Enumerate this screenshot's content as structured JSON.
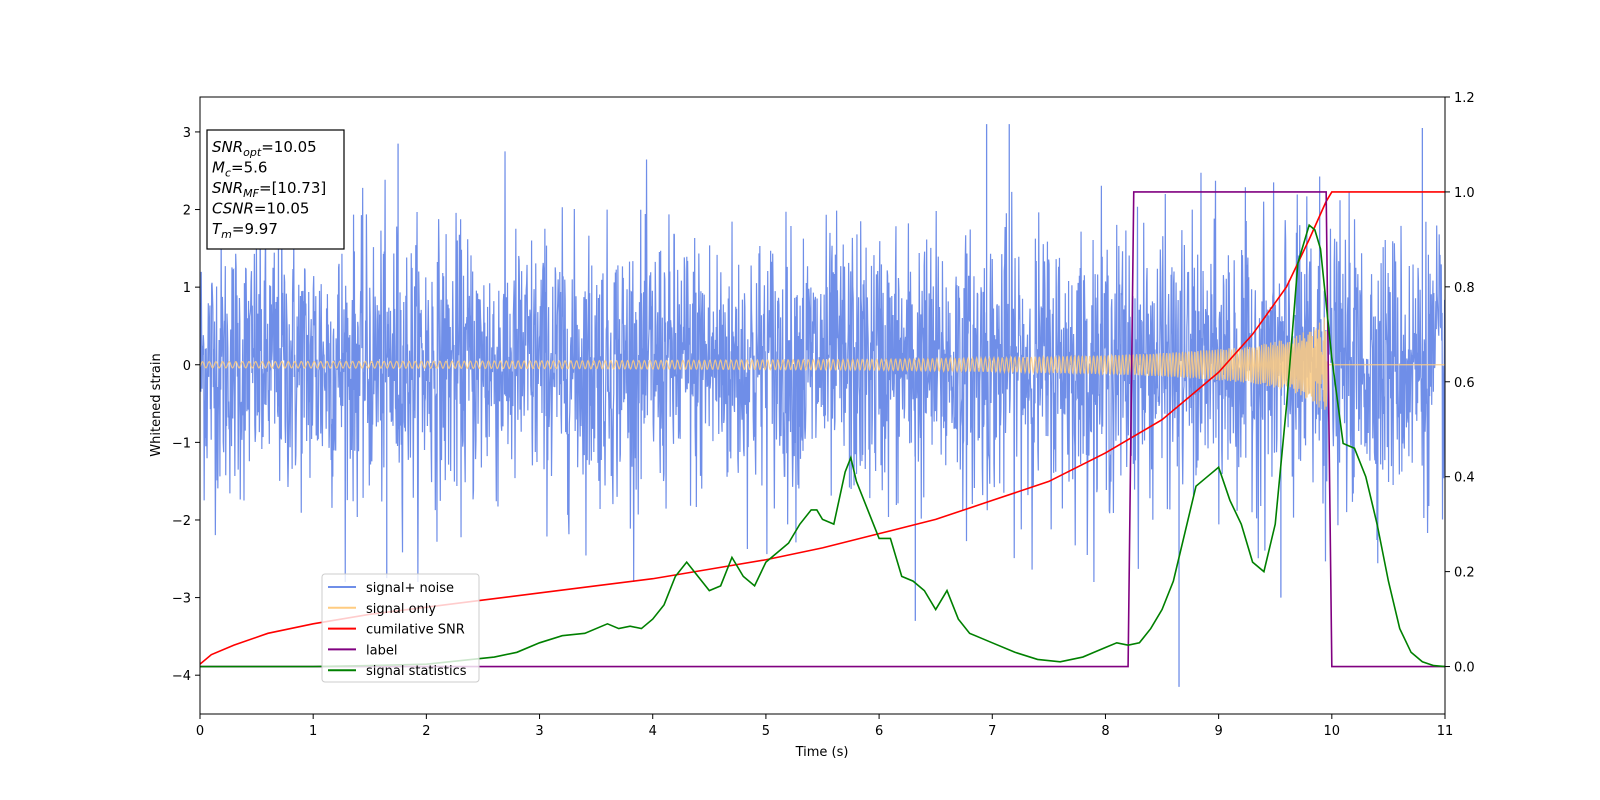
{
  "chart_data": {
    "type": "line",
    "title": "",
    "xlabel": "Time (s)",
    "ylabel": "Whitened strain",
    "xlim": [
      0,
      11
    ],
    "ylim": [
      -4.5,
      3.45
    ],
    "y2lim": [
      -0.1,
      1.2
    ],
    "x_ticks": [
      "0",
      "1",
      "2",
      "3",
      "4",
      "5",
      "6",
      "7",
      "8",
      "9",
      "10",
      "11"
    ],
    "y_ticks": [
      "3",
      "2",
      "1",
      "0",
      "−1",
      "−2",
      "−3",
      "−4"
    ],
    "y_tick_values": [
      3,
      2,
      1,
      0,
      -1,
      -2,
      -3,
      -4
    ],
    "y2_ticks": [
      "1.2",
      "1.0",
      "0.8",
      "0.6",
      "0.4",
      "0.2",
      "0.0"
    ],
    "y2_tick_values": [
      1.2,
      1.0,
      0.8,
      0.6,
      0.4,
      0.2,
      0.0
    ],
    "grid": false,
    "legend_position": "lower-left",
    "annotation": {
      "lines": [
        {
          "base": "SNR",
          "sub": "opt",
          "rest": "=10.05"
        },
        {
          "base": "M",
          "sub": "c",
          "rest": "=5.6"
        },
        {
          "base": "SNR",
          "sub": "MF",
          "rest": "=[10.73]"
        },
        {
          "base": "CSNR",
          "sub": "",
          "rest": "=10.05"
        },
        {
          "base": "T",
          "sub": "m",
          "rest": "=9.97"
        }
      ]
    },
    "series": [
      {
        "name": "signal+ noise",
        "color": "#6f8ee8",
        "axis": "left",
        "description_kind": "noise",
        "sigma": 0.85,
        "merger_time": 9.97,
        "outliers": [
          {
            "x": 1.75,
            "y": 2.85
          },
          {
            "x": 6.95,
            "y": 3.1
          },
          {
            "x": 7.15,
            "y": 3.1
          },
          {
            "x": 10.8,
            "y": 3.05
          },
          {
            "x": 6.32,
            "y": -3.3
          },
          {
            "x": 8.65,
            "y": -4.15
          },
          {
            "x": 1.65,
            "y": -2.75
          },
          {
            "x": 9.55,
            "y": -3.0
          }
        ]
      },
      {
        "name": "signal only",
        "color": "#ffcc80",
        "axis": "left",
        "envelope": [
          [
            0,
            0.04
          ],
          [
            2,
            0.045
          ],
          [
            4,
            0.055
          ],
          [
            6,
            0.07
          ],
          [
            7,
            0.09
          ],
          [
            8,
            0.12
          ],
          [
            8.5,
            0.15
          ],
          [
            9,
            0.2
          ],
          [
            9.3,
            0.24
          ],
          [
            9.5,
            0.3
          ],
          [
            9.7,
            0.38
          ],
          [
            9.85,
            0.5
          ],
          [
            9.95,
            0.65
          ],
          [
            9.97,
            0.0
          ],
          [
            11,
            0.0
          ]
        ]
      },
      {
        "name": "cumilative SNR",
        "color": "#ff0000",
        "axis": "right",
        "x": [
          0,
          0.1,
          0.3,
          0.6,
          1,
          1.5,
          2,
          2.5,
          3,
          3.5,
          4,
          4.5,
          5,
          5.5,
          6,
          6.5,
          7,
          7.5,
          8,
          8.5,
          9,
          9.3,
          9.6,
          9.8,
          9.95,
          10.0,
          11
        ],
        "values": [
          0.005,
          0.025,
          0.045,
          0.07,
          0.09,
          0.11,
          0.125,
          0.14,
          0.155,
          0.17,
          0.185,
          0.205,
          0.225,
          0.25,
          0.28,
          0.31,
          0.35,
          0.39,
          0.45,
          0.52,
          0.62,
          0.7,
          0.8,
          0.9,
          0.98,
          1.0,
          1.0
        ]
      },
      {
        "name": "label",
        "color": "#800080",
        "axis": "right",
        "x": [
          0,
          8.2,
          8.25,
          9.95,
          10.0,
          11
        ],
        "values": [
          0,
          0,
          1,
          1,
          0,
          0
        ]
      },
      {
        "name": "signal statistics",
        "color": "#008000",
        "axis": "right",
        "x": [
          0,
          0.5,
          1.0,
          1.5,
          2.0,
          2.2,
          2.4,
          2.6,
          2.8,
          3.0,
          3.2,
          3.4,
          3.6,
          3.7,
          3.8,
          3.9,
          4.0,
          4.1,
          4.2,
          4.3,
          4.4,
          4.5,
          4.6,
          4.7,
          4.75,
          4.8,
          4.9,
          5.0,
          5.1,
          5.2,
          5.3,
          5.4,
          5.45,
          5.5,
          5.6,
          5.7,
          5.75,
          5.8,
          5.9,
          6.0,
          6.1,
          6.2,
          6.3,
          6.4,
          6.5,
          6.6,
          6.7,
          6.8,
          6.9,
          7.0,
          7.2,
          7.4,
          7.6,
          7.8,
          7.9,
          8.0,
          8.1,
          8.2,
          8.3,
          8.4,
          8.5,
          8.6,
          8.7,
          8.8,
          8.9,
          9.0,
          9.1,
          9.2,
          9.3,
          9.4,
          9.5,
          9.6,
          9.7,
          9.8,
          9.85,
          9.9,
          10.0,
          10.1,
          10.2,
          10.3,
          10.4,
          10.5,
          10.6,
          10.7,
          10.8,
          10.9,
          11.0
        ],
        "values": [
          0,
          0,
          0,
          0.002,
          0.005,
          0.01,
          0.015,
          0.02,
          0.03,
          0.05,
          0.065,
          0.07,
          0.09,
          0.08,
          0.085,
          0.08,
          0.1,
          0.13,
          0.19,
          0.22,
          0.19,
          0.16,
          0.17,
          0.23,
          0.21,
          0.19,
          0.17,
          0.22,
          0.24,
          0.26,
          0.3,
          0.33,
          0.33,
          0.31,
          0.3,
          0.41,
          0.44,
          0.39,
          0.33,
          0.27,
          0.27,
          0.19,
          0.18,
          0.16,
          0.12,
          0.16,
          0.1,
          0.07,
          0.06,
          0.05,
          0.03,
          0.015,
          0.01,
          0.02,
          0.03,
          0.04,
          0.05,
          0.045,
          0.05,
          0.08,
          0.12,
          0.18,
          0.28,
          0.38,
          0.4,
          0.42,
          0.35,
          0.3,
          0.22,
          0.2,
          0.3,
          0.55,
          0.85,
          0.93,
          0.92,
          0.88,
          0.65,
          0.47,
          0.46,
          0.4,
          0.3,
          0.18,
          0.08,
          0.03,
          0.01,
          0.002,
          0
        ]
      }
    ]
  }
}
